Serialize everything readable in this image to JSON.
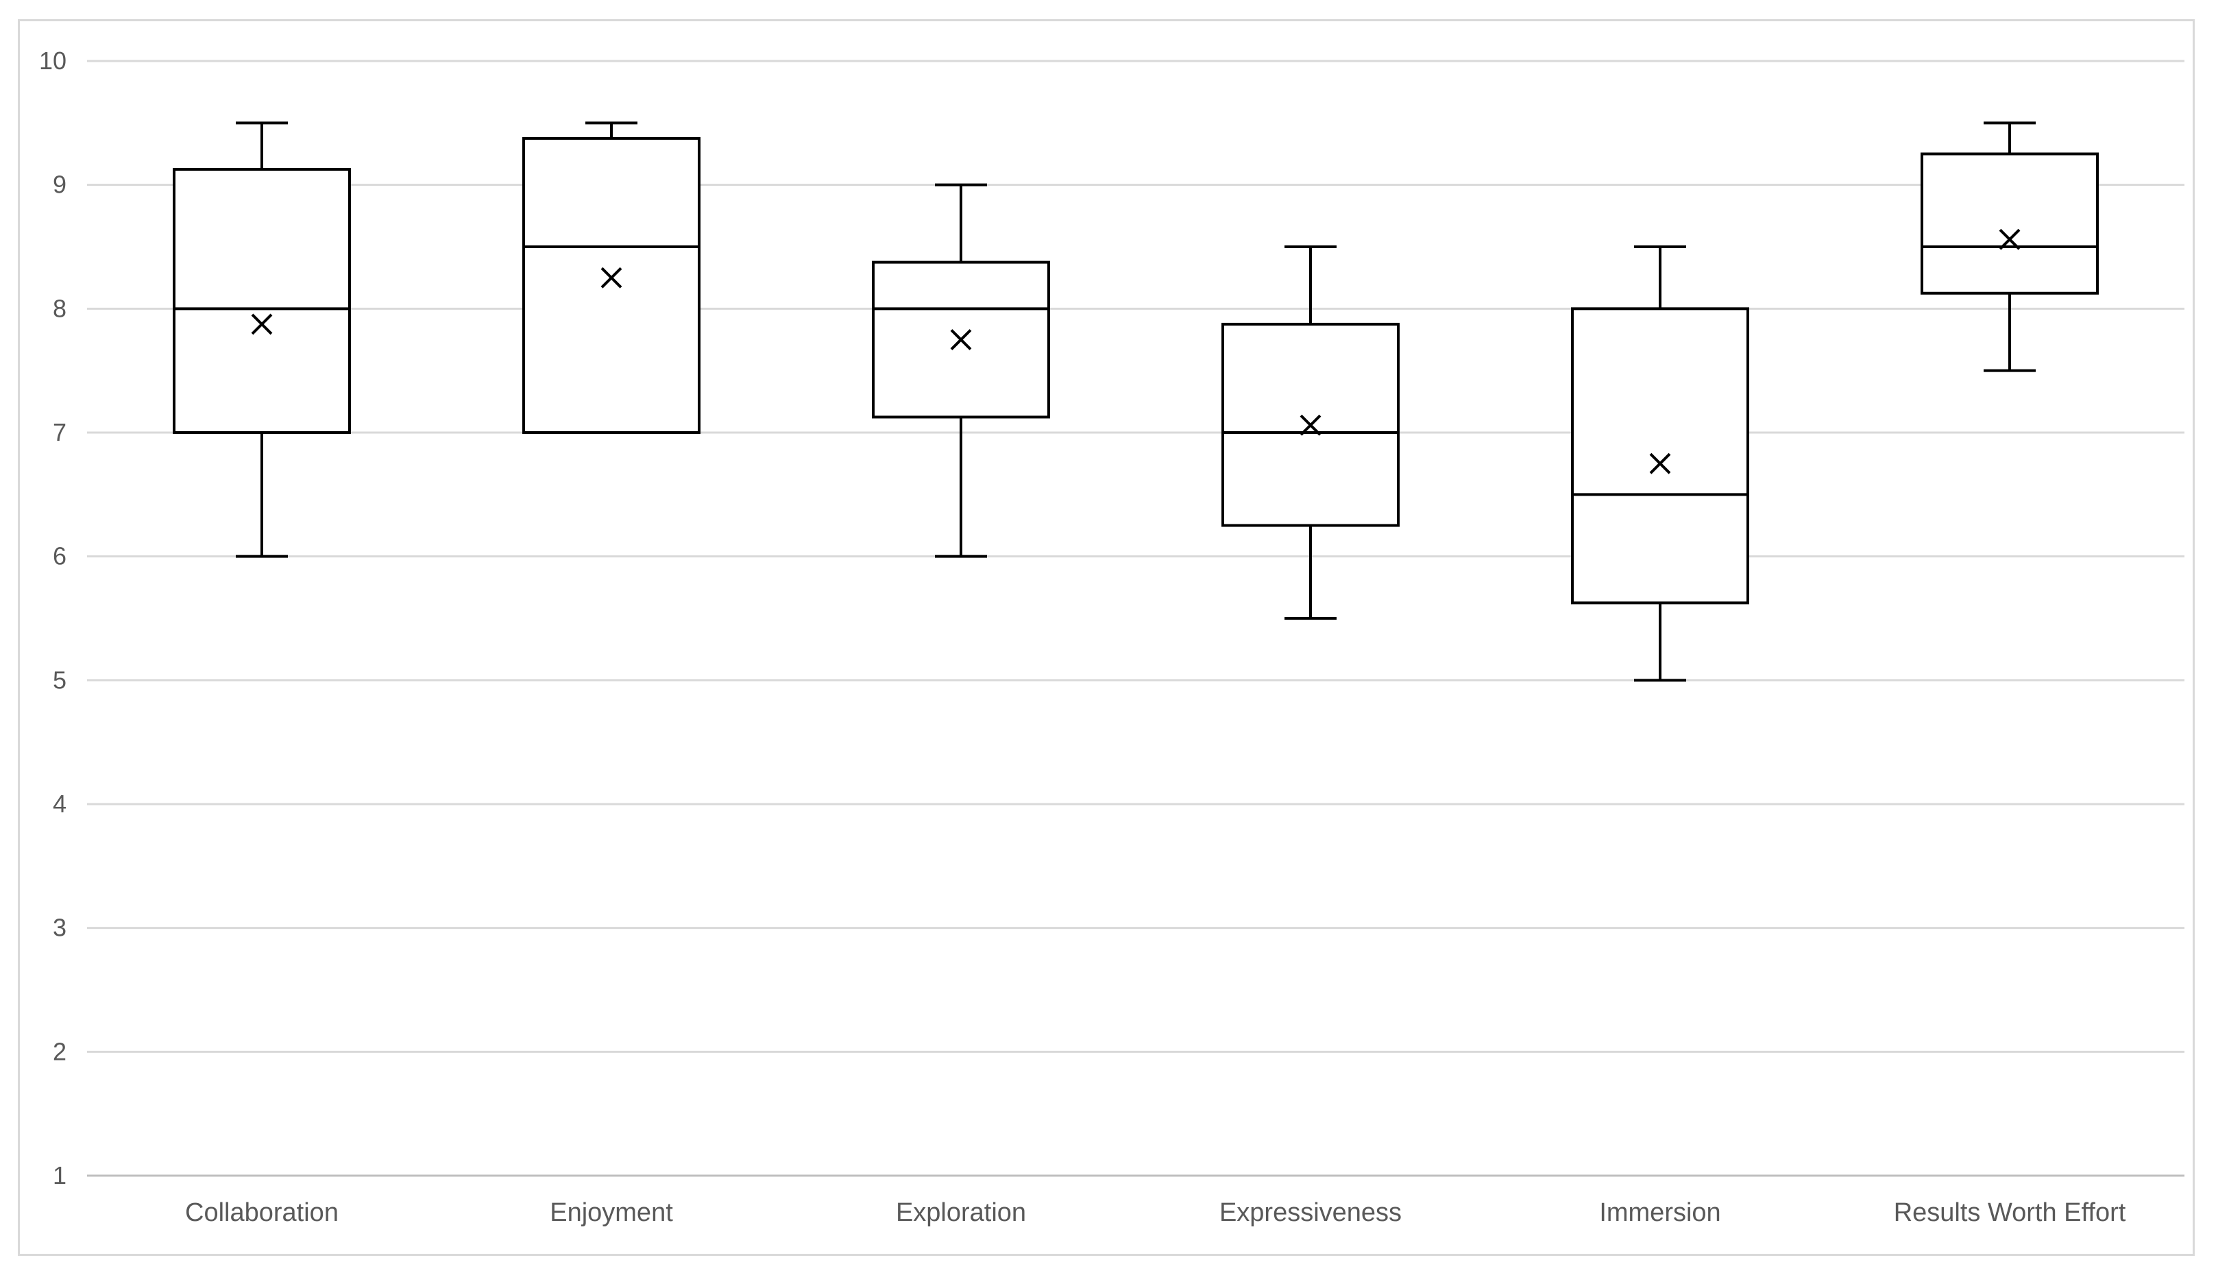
{
  "chart_data": {
    "type": "box",
    "ylim": [
      1,
      10
    ],
    "y_ticks": [
      "1",
      "2",
      "3",
      "4",
      "5",
      "6",
      "7",
      "8",
      "9",
      "10"
    ],
    "grid": "horizontal",
    "legend": "none",
    "colors": {
      "grid": "#d9d9d9",
      "box_stroke": "#000000",
      "label": "#595959"
    },
    "categories": [
      "Collaboration",
      "Enjoyment",
      "Exploration",
      "Expressiveness",
      "Immersion",
      "Results Worth Effort"
    ],
    "boxes": [
      {
        "category": "Collaboration",
        "min": 6.0,
        "q1": 7.0,
        "median": 8.0,
        "q3": 9.125,
        "max": 9.5,
        "mean": 7.875
      },
      {
        "category": "Enjoyment",
        "min": 7.0,
        "q1": 7.0,
        "median": 8.5,
        "q3": 9.375,
        "max": 9.5,
        "mean": 8.25
      },
      {
        "category": "Exploration",
        "min": 6.0,
        "q1": 7.125,
        "median": 8.0,
        "q3": 8.375,
        "max": 9.0,
        "mean": 7.75
      },
      {
        "category": "Expressiveness",
        "min": 5.5,
        "q1": 6.25,
        "median": 7.0,
        "q3": 7.875,
        "max": 8.5,
        "mean": 7.06
      },
      {
        "category": "Immersion",
        "min": 5.0,
        "q1": 5.625,
        "median": 6.5,
        "q3": 8.0,
        "max": 8.5,
        "mean": 6.75
      },
      {
        "category": "Results Worth Effort",
        "min": 7.5,
        "q1": 8.125,
        "median": 8.5,
        "q3": 9.25,
        "max": 9.5,
        "mean": 8.56
      }
    ]
  }
}
